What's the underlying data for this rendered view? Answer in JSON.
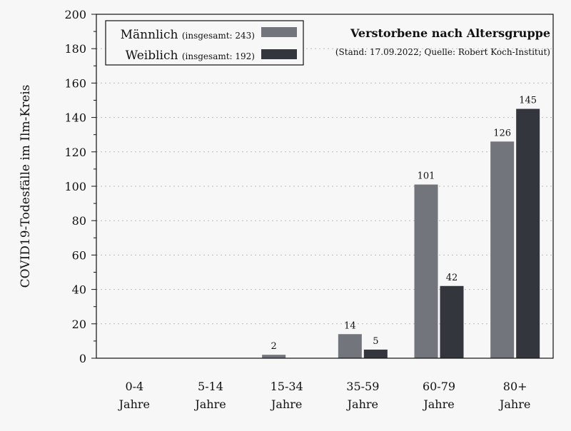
{
  "chart_data": {
    "type": "bar",
    "title": "Verstorbene nach Altersgruppe",
    "subtitle": "(Stand: 17.09.2022; Quelle: Robert Koch-Institut)",
    "xlabel": "",
    "ylabel": "COVID19-Todesfälle im Ilm-Kreis",
    "ylim": [
      0,
      200
    ],
    "yticks": [
      0,
      20,
      40,
      60,
      80,
      100,
      120,
      140,
      160,
      180,
      200
    ],
    "grid": true,
    "legend_placement": "top-left",
    "categories": [
      [
        "0-4",
        "Jahre"
      ],
      [
        "5-14",
        "Jahre"
      ],
      [
        "15-34",
        "Jahre"
      ],
      [
        "35-59",
        "Jahre"
      ],
      [
        "60-79",
        "Jahre"
      ],
      [
        "80+",
        "Jahre"
      ]
    ],
    "series": [
      {
        "name": "Männlich",
        "legend_note": "(insgesamt: 243)",
        "color": "#72757c",
        "values": [
          0,
          0,
          2,
          14,
          101,
          126
        ]
      },
      {
        "name": "Weiblich",
        "legend_note": "(insgesamt: 192)",
        "color": "#33363d",
        "values": [
          0,
          0,
          0,
          5,
          42,
          145
        ]
      }
    ]
  }
}
